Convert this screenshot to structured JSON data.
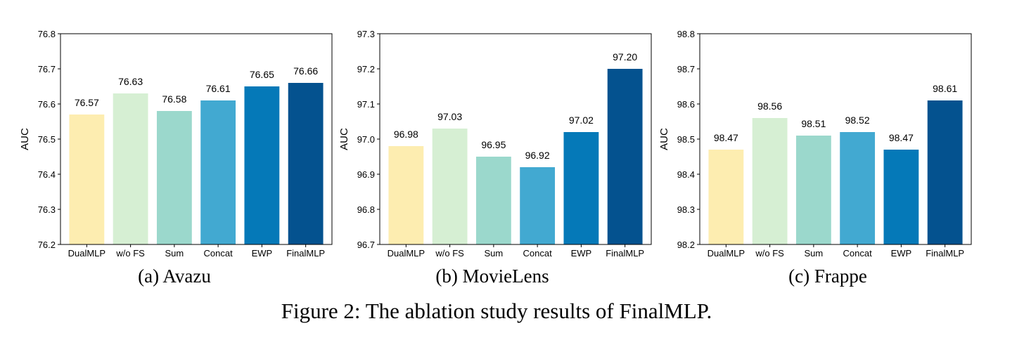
{
  "caption": "Figure 2: The ablation study results of FinalMLP.",
  "colors": [
    "#fdedb0",
    "#d6efd3",
    "#9bd8cc",
    "#42a9d1",
    "#0579b8",
    "#04528f"
  ],
  "chart_data": [
    {
      "type": "bar",
      "subcaption": "(a)  Avazu",
      "ylabel": "AUC",
      "categories": [
        "DualMLP",
        "w/o FS",
        "Sum",
        "Concat",
        "EWP",
        "FinalMLP"
      ],
      "values": [
        76.57,
        76.63,
        76.58,
        76.61,
        76.65,
        76.66
      ],
      "value_labels": [
        "76.57",
        "76.63",
        "76.58",
        "76.61",
        "76.65",
        "76.66"
      ],
      "ylim": [
        76.2,
        76.8
      ],
      "yticks": [
        "76.2",
        "76.3",
        "76.4",
        "76.5",
        "76.6",
        "76.7",
        "76.8"
      ],
      "grid": false,
      "legend": "none"
    },
    {
      "type": "bar",
      "subcaption": "(b)  MovieLens",
      "ylabel": "AUC",
      "categories": [
        "DualMLP",
        "w/o FS",
        "Sum",
        "Concat",
        "EWP",
        "FinalMLP"
      ],
      "values": [
        96.98,
        97.03,
        96.95,
        96.92,
        97.02,
        97.2
      ],
      "value_labels": [
        "96.98",
        "97.03",
        "96.95",
        "96.92",
        "97.02",
        "97.20"
      ],
      "ylim": [
        96.7,
        97.3
      ],
      "yticks": [
        "96.7",
        "96.8",
        "96.9",
        "97.0",
        "97.1",
        "97.2",
        "97.3"
      ],
      "grid": false,
      "legend": "none"
    },
    {
      "type": "bar",
      "subcaption": "(c)  Frappe",
      "ylabel": "AUC",
      "categories": [
        "DualMLP",
        "w/o FS",
        "Sum",
        "Concat",
        "EWP",
        "FinalMLP"
      ],
      "values": [
        98.47,
        98.56,
        98.51,
        98.52,
        98.47,
        98.61
      ],
      "value_labels": [
        "98.47",
        "98.56",
        "98.51",
        "98.52",
        "98.47",
        "98.61"
      ],
      "ylim": [
        98.2,
        98.8
      ],
      "yticks": [
        "98.2",
        "98.3",
        "98.4",
        "98.5",
        "98.6",
        "98.7",
        "98.8"
      ],
      "grid": false,
      "legend": "none"
    }
  ]
}
